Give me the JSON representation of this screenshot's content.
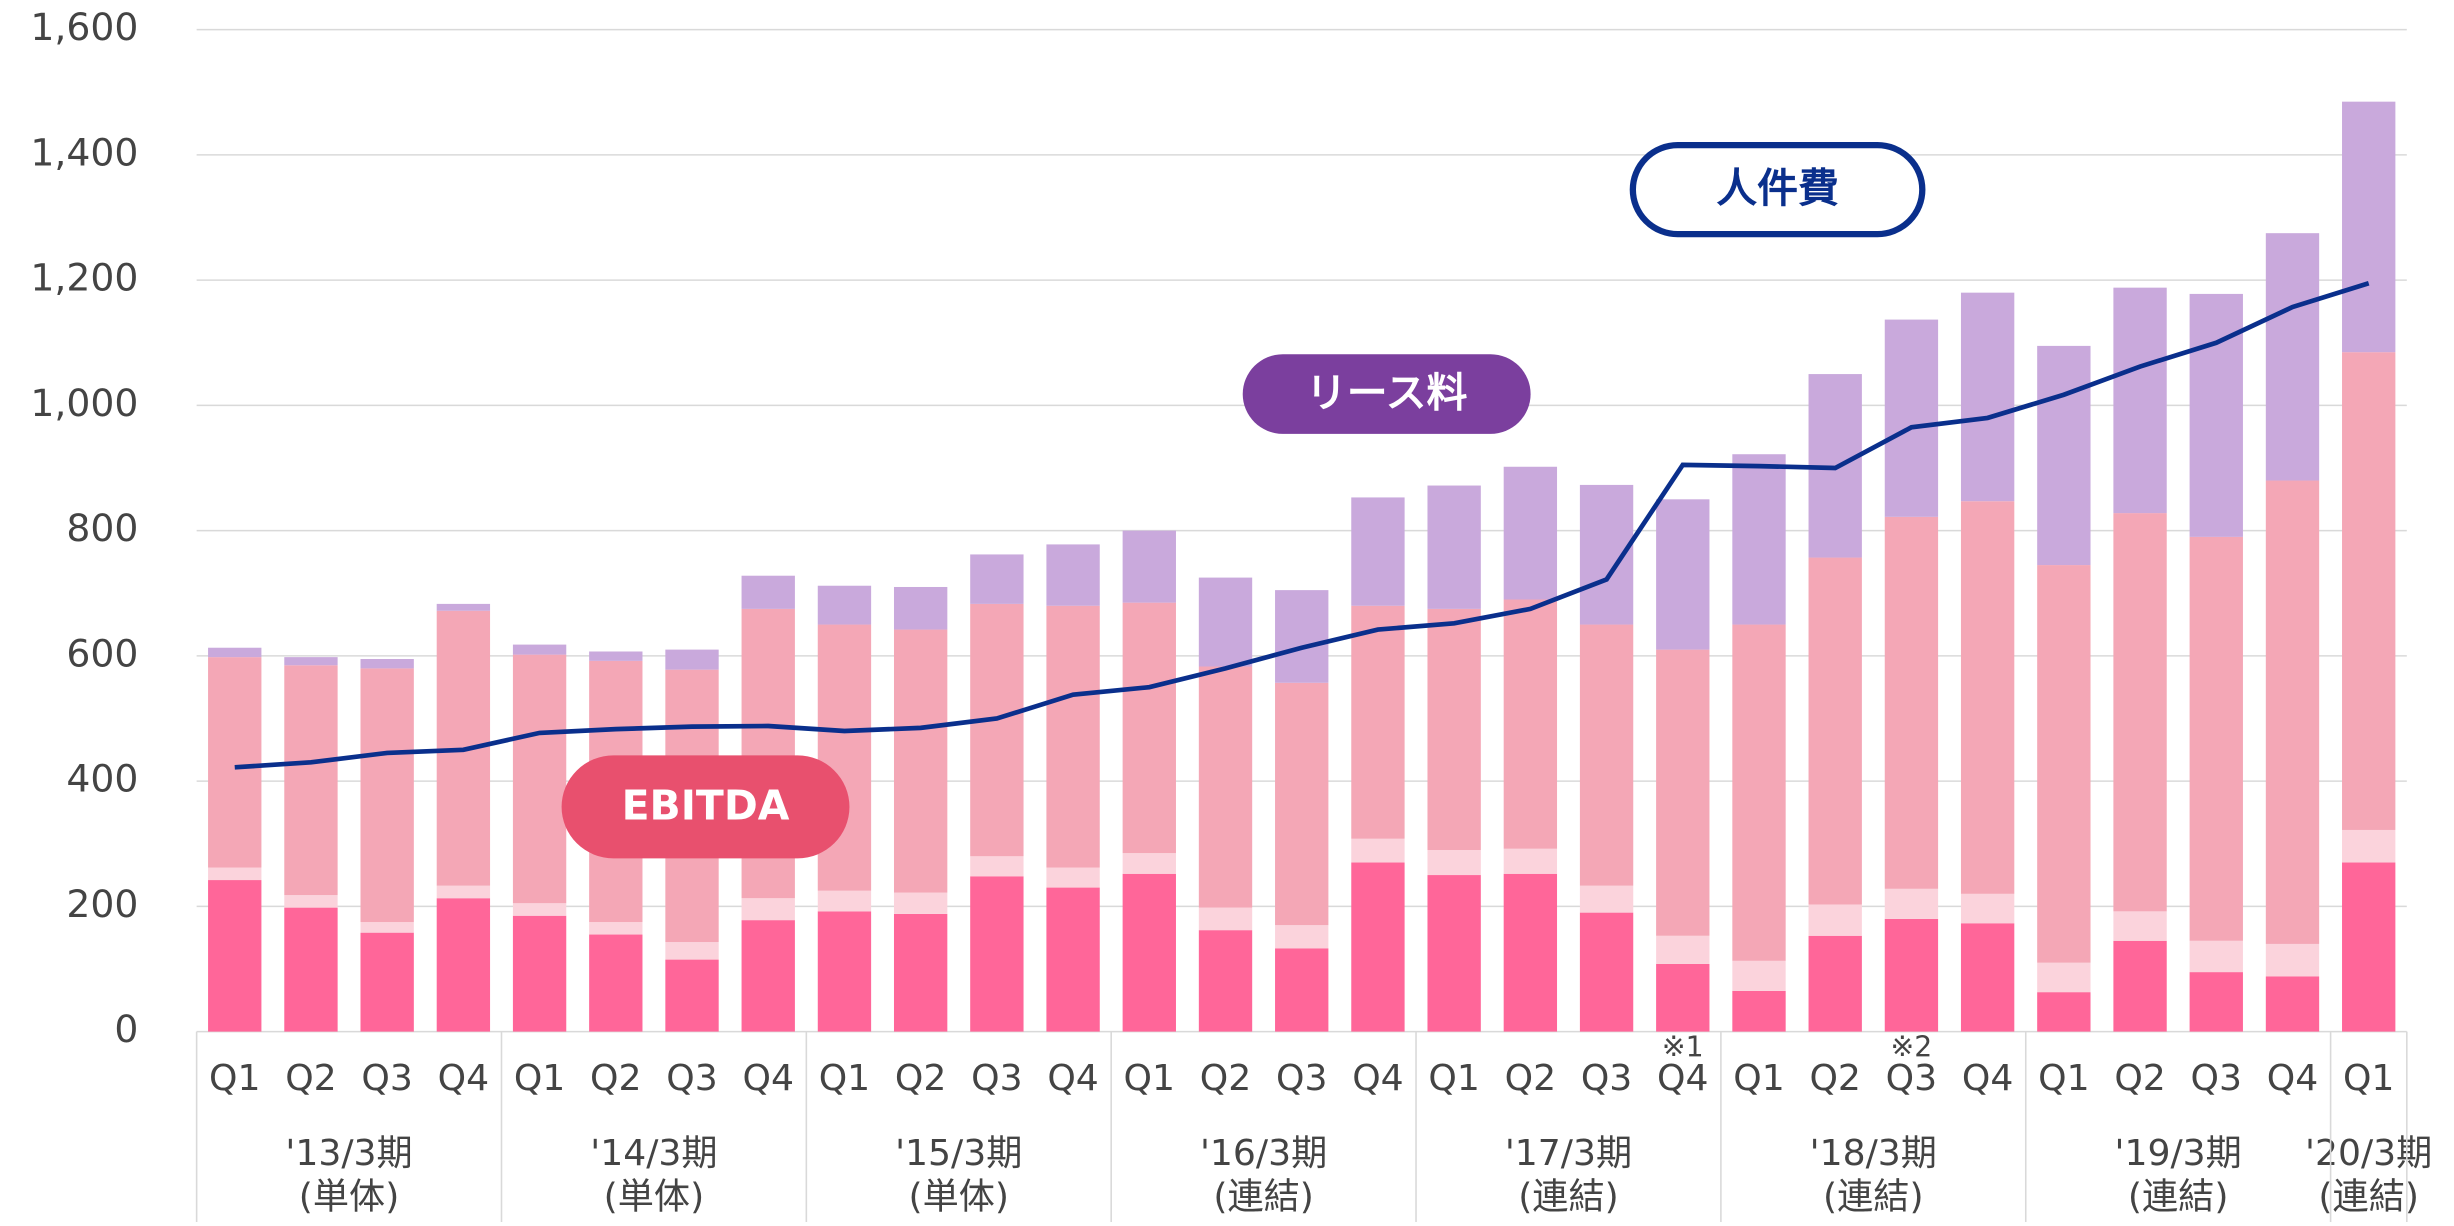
{
  "chart_data": {
    "type": "bar",
    "groups": [
      {
        "label": "'13/3期",
        "sub": "(単体)",
        "categories": [
          "Q1",
          "Q2",
          "Q3",
          "Q4"
        ]
      },
      {
        "label": "'14/3期",
        "sub": "(単体)",
        "categories": [
          "Q1",
          "Q2",
          "Q3",
          "Q4"
        ]
      },
      {
        "label": "'15/3期",
        "sub": "(単体)",
        "categories": [
          "Q1",
          "Q2",
          "Q3",
          "Q4"
        ]
      },
      {
        "label": "'16/3期",
        "sub": "(連結)",
        "categories": [
          "Q1",
          "Q2",
          "Q3",
          "Q4"
        ]
      },
      {
        "label": "'17/3期",
        "sub": "(連結)",
        "categories": [
          "Q1",
          "Q2",
          "Q3",
          "Q4"
        ]
      },
      {
        "label": "'18/3期",
        "sub": "(連結)",
        "categories": [
          "Q1",
          "Q2",
          "Q3",
          "Q4"
        ]
      },
      {
        "label": "'19/3期",
        "sub": "(連結)",
        "categories": [
          "Q1",
          "Q2",
          "Q3",
          "Q4"
        ]
      },
      {
        "label": "'20/3期",
        "sub": "(連結)",
        "categories": [
          "Q1"
        ]
      }
    ],
    "category_notes": [
      null,
      null,
      null,
      null,
      null,
      null,
      null,
      null,
      null,
      null,
      null,
      null,
      null,
      null,
      null,
      null,
      null,
      null,
      null,
      "※1",
      null,
      null,
      "※2",
      null,
      null,
      null,
      null,
      null,
      null
    ],
    "series": [
      {
        "color": "#ff6699",
        "values": [
          242,
          198,
          158,
          213,
          185,
          155,
          115,
          178,
          192,
          188,
          248,
          230,
          252,
          162,
          133,
          270,
          250,
          252,
          190,
          108,
          65,
          153,
          180,
          173,
          63,
          145,
          95,
          88,
          270
        ]
      },
      {
        "color": "#fbd3dc",
        "values": [
          20,
          20,
          17,
          20,
          20,
          20,
          28,
          35,
          33,
          34,
          32,
          32,
          33,
          36,
          37,
          38,
          40,
          40,
          43,
          45,
          48,
          50,
          48,
          47,
          47,
          47,
          50,
          52,
          52
        ]
      },
      {
        "name": "EBITDA",
        "color": "#f4a7b6",
        "label_color": "#e8506e",
        "values": [
          336,
          367,
          405,
          439,
          397,
          417,
          435,
          462,
          425,
          420,
          403,
          418,
          400,
          385,
          387,
          372,
          385,
          398,
          417,
          457,
          537,
          554,
          594,
          627,
          635,
          636,
          645,
          740,
          763
        ]
      },
      {
        "name": "リース料",
        "color": "#c9a9dc",
        "label_color": "#7b3f9e",
        "values": [
          15,
          13,
          15,
          11,
          16,
          15,
          32,
          53,
          62,
          68,
          79,
          98,
          115,
          142,
          148,
          173,
          197,
          212,
          223,
          240,
          272,
          293,
          315,
          333,
          350,
          360,
          388,
          395,
          400
        ]
      },
      {
        "name": "人件費",
        "type": "line",
        "color": "#0a2f8c",
        "values": [
          422,
          430,
          445,
          450,
          477,
          483,
          487,
          488,
          480,
          485,
          500,
          538,
          550,
          580,
          613,
          642,
          652,
          675,
          722,
          905,
          903,
          900,
          965,
          980,
          1017,
          1062,
          1100,
          1157,
          1195
        ]
      }
    ],
    "ylim": [
      0,
      1600
    ],
    "yticks": [
      0,
      200,
      400,
      600,
      800,
      {
        "value": 1000,
        "label": "1,000"
      },
      {
        "value": 1200,
        "label": "1,200"
      },
      {
        "value": 1400,
        "label": "1,400"
      },
      {
        "value": 1600,
        "label": "1,600"
      }
    ],
    "grid": true
  }
}
